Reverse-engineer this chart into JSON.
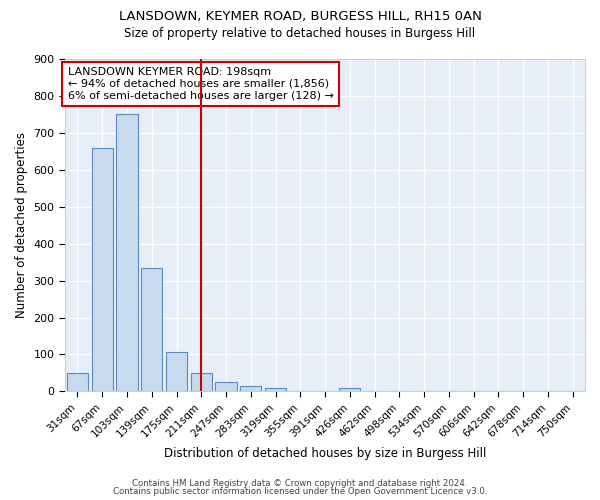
{
  "title": "LANSDOWN, KEYMER ROAD, BURGESS HILL, RH15 0AN",
  "subtitle": "Size of property relative to detached houses in Burgess Hill",
  "xlabel": "Distribution of detached houses by size in Burgess Hill",
  "ylabel": "Number of detached properties",
  "bar_color": "#c8daee",
  "bar_edge_color": "#5a8abf",
  "categories": [
    "31sqm",
    "67sqm",
    "103sqm",
    "139sqm",
    "175sqm",
    "211sqm",
    "247sqm",
    "283sqm",
    "319sqm",
    "355sqm",
    "391sqm",
    "426sqm",
    "462sqm",
    "498sqm",
    "534sqm",
    "570sqm",
    "606sqm",
    "642sqm",
    "678sqm",
    "714sqm",
    "750sqm"
  ],
  "values": [
    50,
    660,
    750,
    335,
    108,
    50,
    25,
    15,
    10,
    0,
    0,
    10,
    0,
    0,
    0,
    0,
    0,
    0,
    0,
    0,
    0
  ],
  "vline_position": 5.0,
  "vline_color": "#cc0000",
  "annotation_line1": "LANSDOWN KEYMER ROAD: 198sqm",
  "annotation_line2": "← 94% of detached houses are smaller (1,856)",
  "annotation_line3": "6% of semi-detached houses are larger (128) →",
  "annotation_box_color": "#cc0000",
  "ylim": [
    0,
    900
  ],
  "yticks": [
    0,
    100,
    200,
    300,
    400,
    500,
    600,
    700,
    800,
    900
  ],
  "footer_line1": "Contains HM Land Registry data © Crown copyright and database right 2024.",
  "footer_line2": "Contains public sector information licensed under the Open Government Licence v3.0.",
  "bg_color": "#ffffff",
  "plot_bg_color": "#e8eef8"
}
